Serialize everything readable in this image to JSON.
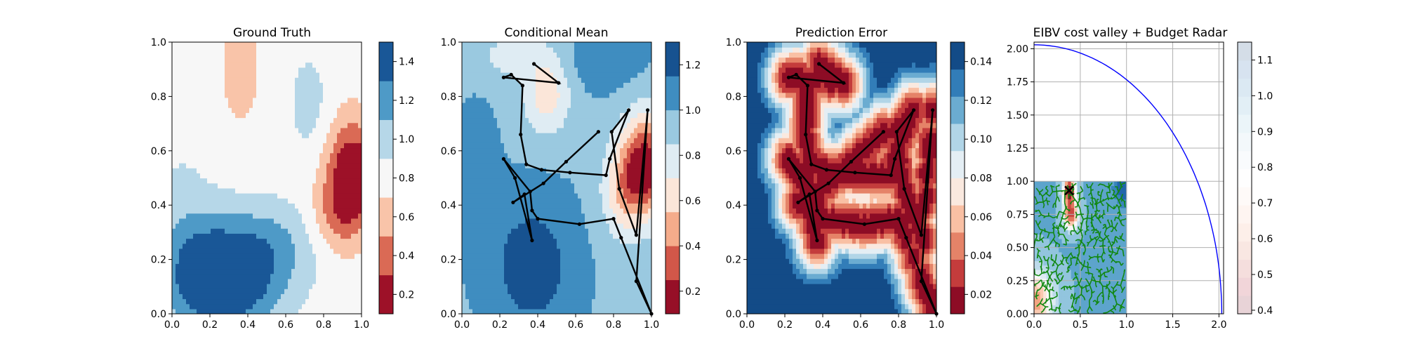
{
  "chart_data": [
    {
      "type": "heatmap",
      "title": "Ground Truth",
      "xlim": [
        0,
        1
      ],
      "ylim": [
        0,
        1
      ],
      "xticks": [
        "0.0",
        "0.2",
        "0.4",
        "0.6",
        "0.8",
        "1.0"
      ],
      "yticks": [
        "0.0",
        "0.2",
        "0.4",
        "0.6",
        "0.8",
        "1.0"
      ],
      "colormap": "RdBu",
      "colorbar": {
        "range": [
          0.1,
          1.5
        ],
        "ticks": [
          "0.2",
          "0.4",
          "0.6",
          "0.8",
          "1.0",
          "1.2",
          "1.4"
        ],
        "tick_values": [
          0.2,
          0.4,
          0.6,
          0.8,
          1.0,
          1.2,
          1.4
        ],
        "levels": 7
      },
      "field": {
        "base": 0.78,
        "blobs": [
          {
            "cx": 0.95,
            "cy": 0.52,
            "sx": 0.09,
            "sy": 0.13,
            "a": -0.72
          },
          {
            "cx": 0.87,
            "cy": 0.36,
            "sx": 0.1,
            "sy": 0.1,
            "a": -0.3
          },
          {
            "cx": 0.36,
            "cy": 0.9,
            "sx": 0.07,
            "sy": 0.14,
            "a": -0.18
          },
          {
            "cx": 0.28,
            "cy": 0.08,
            "sx": 0.2,
            "sy": 0.12,
            "a": 0.62
          },
          {
            "cx": 0.45,
            "cy": 0.25,
            "sx": 0.22,
            "sy": 0.12,
            "a": 0.42
          },
          {
            "cx": 0.1,
            "cy": 0.22,
            "sx": 0.15,
            "sy": 0.15,
            "a": 0.32
          },
          {
            "cx": 0.72,
            "cy": 0.78,
            "sx": 0.08,
            "sy": 0.14,
            "a": 0.2
          },
          {
            "cx": 0.05,
            "cy": 0.5,
            "sx": 0.1,
            "sy": 0.1,
            "a": 0.1
          }
        ]
      }
    },
    {
      "type": "heatmap",
      "title": "Conditional Mean",
      "xlim": [
        0,
        1
      ],
      "ylim": [
        0,
        1
      ],
      "xticks": [
        "0.0",
        "0.2",
        "0.4",
        "0.6",
        "0.8",
        "1.0"
      ],
      "yticks": [
        "0.0",
        "0.2",
        "0.4",
        "0.6",
        "0.8",
        "1.0"
      ],
      "colormap": "RdBu",
      "colorbar": {
        "range": [
          0.1,
          1.3
        ],
        "ticks": [
          "0.2",
          "0.4",
          "0.6",
          "0.8",
          "1.0",
          "1.2"
        ],
        "tick_values": [
          0.2,
          0.4,
          0.6,
          0.8,
          1.0,
          1.2
        ],
        "levels": 8
      },
      "field": {
        "base": 0.98,
        "blobs": [
          {
            "cx": 0.97,
            "cy": 0.55,
            "sx": 0.09,
            "sy": 0.13,
            "a": -0.82
          },
          {
            "cx": 0.85,
            "cy": 0.45,
            "sx": 0.08,
            "sy": 0.12,
            "a": -0.35
          },
          {
            "cx": 0.45,
            "cy": 0.82,
            "sx": 0.09,
            "sy": 0.11,
            "a": -0.38
          },
          {
            "cx": 0.25,
            "cy": 0.95,
            "sx": 0.12,
            "sy": 0.06,
            "a": -0.2
          },
          {
            "cx": 0.37,
            "cy": 0.18,
            "sx": 0.15,
            "sy": 0.17,
            "a": 0.28
          },
          {
            "cx": 0.08,
            "cy": 0.5,
            "sx": 0.08,
            "sy": 0.18,
            "a": 0.1
          },
          {
            "cx": 0.7,
            "cy": 0.92,
            "sx": 0.2,
            "sy": 0.08,
            "a": 0.1
          }
        ]
      },
      "path": [
        [
          0.38,
          0.92
        ],
        [
          0.51,
          0.85
        ],
        [
          0.22,
          0.87
        ],
        [
          0.26,
          0.88
        ],
        [
          0.32,
          0.84
        ],
        [
          0.31,
          0.66
        ],
        [
          0.34,
          0.55
        ],
        [
          0.42,
          0.53
        ],
        [
          0.57,
          0.52
        ],
        [
          0.76,
          0.51
        ],
        [
          0.78,
          0.57
        ],
        [
          0.88,
          0.75
        ],
        [
          0.79,
          0.67
        ],
        [
          0.83,
          0.46
        ],
        [
          0.92,
          0.29
        ],
        [
          0.98,
          0.75
        ],
        [
          0.92,
          0.12
        ],
        [
          1.0,
          0.0
        ],
        [
          0.84,
          0.28
        ],
        [
          0.8,
          0.35
        ],
        [
          0.62,
          0.33
        ],
        [
          0.4,
          0.35
        ],
        [
          0.37,
          0.38
        ],
        [
          0.36,
          0.45
        ],
        [
          0.22,
          0.57
        ],
        [
          0.28,
          0.5
        ],
        [
          0.37,
          0.27
        ],
        [
          0.33,
          0.44
        ],
        [
          0.27,
          0.41
        ],
        [
          0.43,
          0.48
        ],
        [
          0.55,
          0.56
        ],
        [
          0.72,
          0.67
        ]
      ]
    },
    {
      "type": "heatmap",
      "title": "Prediction Error",
      "xlim": [
        0,
        1
      ],
      "ylim": [
        0,
        1
      ],
      "xticks": [
        "0.0",
        "0.2",
        "0.4",
        "0.6",
        "0.8",
        "1.0"
      ],
      "yticks": [
        "0.0",
        "0.2",
        "0.4",
        "0.6",
        "0.8",
        "1.0"
      ],
      "colormap": "RdBu",
      "colorbar": {
        "range": [
          0.01,
          0.15
        ],
        "ticks": [
          "0.02",
          "0.04",
          "0.06",
          "0.08",
          "0.10",
          "0.12",
          "0.14"
        ],
        "tick_values": [
          0.02,
          0.04,
          0.06,
          0.08,
          0.1,
          0.12,
          0.14
        ],
        "levels": 10
      },
      "field": {
        "base": 0.145,
        "sigma": 0.085,
        "depth": 0.145
      },
      "path": [
        [
          0.38,
          0.92
        ],
        [
          0.51,
          0.85
        ],
        [
          0.22,
          0.87
        ],
        [
          0.26,
          0.88
        ],
        [
          0.32,
          0.84
        ],
        [
          0.31,
          0.66
        ],
        [
          0.34,
          0.55
        ],
        [
          0.42,
          0.53
        ],
        [
          0.57,
          0.52
        ],
        [
          0.76,
          0.51
        ],
        [
          0.78,
          0.57
        ],
        [
          0.88,
          0.75
        ],
        [
          0.79,
          0.67
        ],
        [
          0.83,
          0.46
        ],
        [
          0.92,
          0.29
        ],
        [
          0.98,
          0.75
        ],
        [
          0.92,
          0.12
        ],
        [
          1.0,
          0.0
        ],
        [
          0.84,
          0.28
        ],
        [
          0.8,
          0.35
        ],
        [
          0.62,
          0.33
        ],
        [
          0.4,
          0.35
        ],
        [
          0.37,
          0.38
        ],
        [
          0.36,
          0.45
        ],
        [
          0.22,
          0.57
        ],
        [
          0.28,
          0.5
        ],
        [
          0.37,
          0.27
        ],
        [
          0.33,
          0.44
        ],
        [
          0.27,
          0.41
        ],
        [
          0.43,
          0.48
        ],
        [
          0.55,
          0.56
        ],
        [
          0.72,
          0.67
        ]
      ]
    },
    {
      "type": "heatmap",
      "title": "EIBV cost valley + Budget Radar",
      "xlim": [
        0,
        2.05
      ],
      "ylim": [
        0,
        2.05
      ],
      "xticks": [
        "0.0",
        "0.5",
        "1.0",
        "1.5",
        "2.0"
      ],
      "xtick_values": [
        0,
        0.5,
        1.0,
        1.5,
        2.0
      ],
      "yticks": [
        "0.00",
        "0.25",
        "0.50",
        "0.75",
        "1.00",
        "1.25",
        "1.50",
        "1.75",
        "2.00"
      ],
      "ytick_values": [
        0,
        0.25,
        0.5,
        0.75,
        1.0,
        1.25,
        1.5,
        1.75,
        2.0
      ],
      "grid": true,
      "colormap": "RdBu",
      "colorbar": {
        "range": [
          0.39,
          1.15
        ],
        "ticks": [
          "0.4",
          "0.5",
          "0.6",
          "0.7",
          "0.8",
          "0.9",
          "1.0",
          "1.1"
        ],
        "tick_values": [
          0.4,
          0.5,
          0.6,
          0.7,
          0.8,
          0.9,
          1.0,
          1.1
        ],
        "levels": 15,
        "faded": true
      },
      "budget_radar": {
        "center": [
          0,
          0
        ],
        "radius": 2.03,
        "color": "#0000ff"
      },
      "current_location": [
        0.38,
        0.93
      ],
      "tree_color": "#118811",
      "tree_seed": 7
    }
  ]
}
